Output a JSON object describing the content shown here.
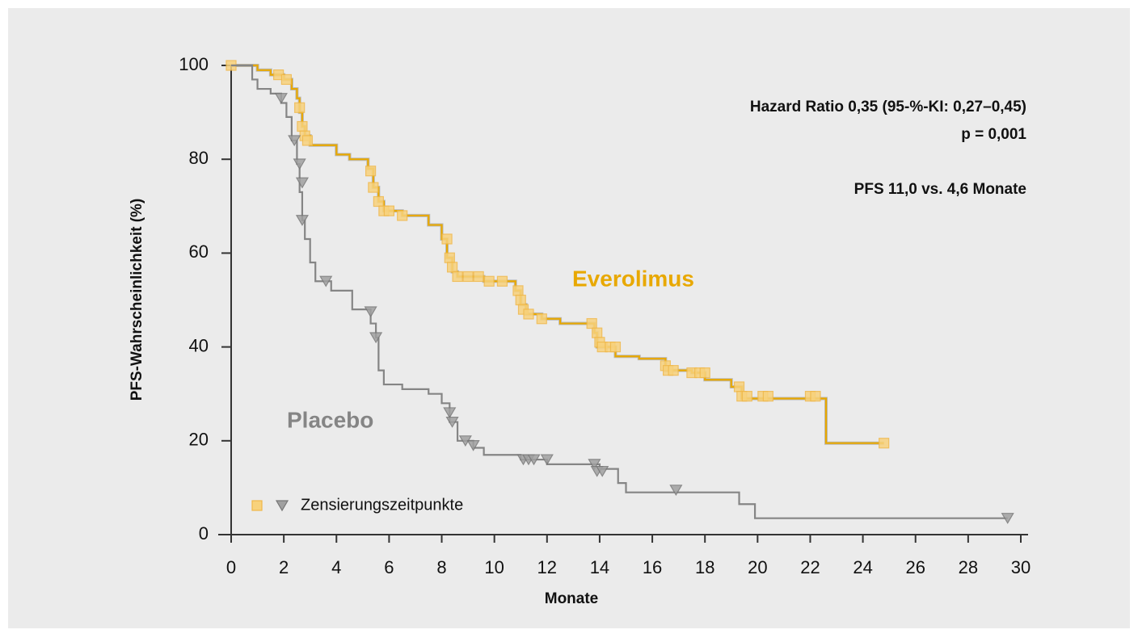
{
  "chart_data": {
    "type": "step",
    "xlabel": "Monate",
    "ylabel": "PFS-Wahrscheinlichkeit (%)",
    "xlim": [
      0,
      30
    ],
    "xticks": [
      0,
      2,
      4,
      6,
      8,
      10,
      12,
      14,
      16,
      18,
      20,
      22,
      24,
      26,
      28,
      30
    ],
    "ylim": [
      0,
      100
    ],
    "yticks": [
      0,
      20,
      40,
      60,
      80,
      100
    ],
    "grid": false,
    "legend": "Zensierungszeitpunkte",
    "annotations": [
      "Hazard Ratio 0,35 (95-%-KI: 0,27–0,45)",
      "p = 0,001",
      "PFS 11,0 vs. 4,6 Monate"
    ],
    "series": [
      {
        "name": "Everolimus",
        "color": "#e8a800",
        "marker": "square",
        "marker_color": "#f8d27c",
        "x": [
          0,
          1,
          1.5,
          2,
          2.3,
          2.5,
          2.6,
          2.7,
          2.8,
          3.0,
          4,
          4.5,
          5.2,
          5.4,
          5.6,
          5.8,
          6.5,
          7.5,
          8.0,
          8.2,
          8.4,
          8.6,
          9.6,
          10.8,
          11.0,
          11.2,
          11.8,
          12.5,
          13.8,
          13.9,
          14.6,
          15.5,
          16.5,
          17.5,
          18,
          19,
          19.4,
          22.6,
          24.8
        ],
        "values": [
          100,
          99,
          98,
          97,
          95,
          93,
          90,
          87,
          85,
          83,
          81,
          80,
          78,
          74,
          71,
          69,
          68,
          66,
          63,
          59,
          56,
          55,
          54,
          52,
          49,
          47,
          46,
          45,
          43,
          40,
          38,
          37.5,
          35,
          34.5,
          33,
          31.5,
          29,
          19.5,
          19.5
        ],
        "censored_x": [
          0,
          1.8,
          2.1,
          2.6,
          2.7,
          2.8,
          2.9,
          5.3,
          5.4,
          5.6,
          5.8,
          6,
          6.5,
          8.2,
          8.3,
          8.4,
          8.6,
          9,
          9.4,
          9.8,
          10.3,
          10.9,
          11,
          11.1,
          11.3,
          11.8,
          13.7,
          13.9,
          14,
          14.1,
          14.4,
          14.6,
          16.5,
          16.6,
          16.8,
          17.5,
          17.8,
          18,
          19.3,
          19.4,
          19.6,
          20.2,
          20.4,
          22,
          22.2,
          24.8
        ],
        "censored_values": [
          100,
          98,
          97,
          91,
          87,
          85,
          84,
          77.5,
          74,
          71,
          69,
          69,
          68,
          63,
          59,
          57,
          55,
          55,
          55,
          54,
          54,
          52,
          50,
          48,
          47,
          46,
          45,
          43,
          41,
          40,
          40,
          40,
          36,
          35,
          35,
          34.5,
          34.5,
          34.5,
          31.5,
          29.5,
          29.5,
          29.5,
          29.5,
          29.5,
          29.5,
          19.5
        ]
      },
      {
        "name": "Placebo",
        "color": "#858585",
        "marker": "triangle",
        "marker_color": "#a0a0a0",
        "x": [
          0,
          0.8,
          1,
          1.5,
          1.9,
          2.1,
          2.3,
          2.5,
          2.6,
          2.7,
          2.8,
          3.0,
          3.2,
          3.8,
          4.6,
          5.3,
          5.5,
          5.6,
          5.8,
          6.5,
          7.5,
          8.0,
          8.3,
          8.6,
          9.2,
          9.6,
          11.0,
          12.0,
          14.0,
          14.7,
          15,
          19.3,
          19.9,
          29.5
        ],
        "values": [
          100,
          97,
          95,
          94,
          92,
          89,
          84,
          79,
          73,
          67,
          63,
          58,
          54,
          52,
          48,
          45,
          42,
          35,
          32,
          31,
          30,
          28,
          24,
          20,
          18.5,
          17,
          16,
          15,
          14,
          11,
          9,
          6.5,
          3.5,
          3.5
        ],
        "censored_x": [
          1.9,
          2.4,
          2.6,
          2.7,
          2.7,
          3.6,
          5.3,
          5.5,
          8.3,
          8.4,
          8.9,
          9.2,
          11.1,
          11.3,
          11.5,
          12,
          13.8,
          13.9,
          14.1,
          16.9,
          29.5
        ],
        "censored_values": [
          93,
          84,
          79,
          75,
          67,
          54,
          47.5,
          42,
          26,
          24,
          20,
          19,
          16,
          16,
          16,
          16,
          15,
          13.5,
          13.5,
          9.5,
          3.5
        ]
      }
    ]
  }
}
